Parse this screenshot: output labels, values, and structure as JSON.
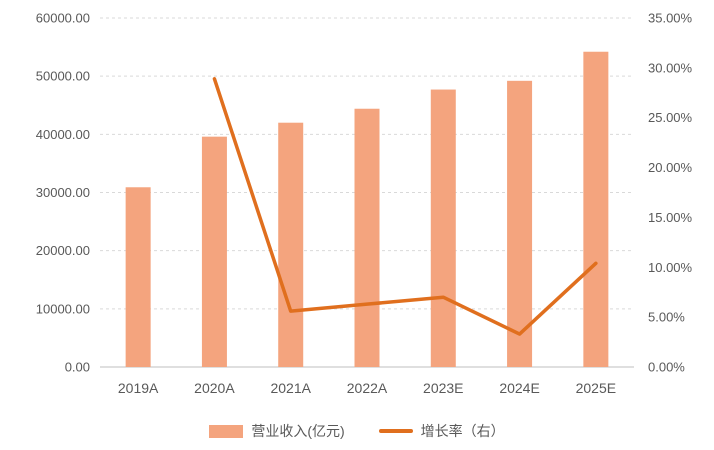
{
  "chart_data": {
    "type": "bar",
    "subtype": "bar-and-line-combo",
    "categories": [
      "2019A",
      "2020A",
      "2021A",
      "2022A",
      "2023E",
      "2024E",
      "2025E"
    ],
    "series": [
      {
        "name": "营业收入(亿元)",
        "type": "bar",
        "axis": "left",
        "values": [
          30900,
          39600,
          42000,
          44400,
          47700,
          49200,
          54200
        ]
      },
      {
        "name": "增长率（右）",
        "type": "line",
        "axis": "right",
        "values": [
          null,
          28.9,
          5.6,
          6.3,
          7.0,
          3.3,
          10.4
        ]
      }
    ],
    "left_axis": {
      "min": 0,
      "max": 60000,
      "tick_labels": [
        "0.00",
        "10000.00",
        "20000.00",
        "30000.00",
        "40000.00",
        "50000.00",
        "60000.00"
      ]
    },
    "right_axis": {
      "min": 0,
      "max": 35,
      "tick_labels": [
        "0.00%",
        "5.00%",
        "10.00%",
        "15.00%",
        "20.00%",
        "25.00%",
        "30.00%",
        "35.00%"
      ],
      "unit": "%"
    },
    "title": "",
    "xlabel": "",
    "ylabel": "",
    "grid": "horizontal-dashed",
    "legend_position": "bottom"
  },
  "legend": {
    "bar_label": "营业收入(亿元)",
    "line_label": "增长率（右）"
  },
  "colors": {
    "bar": "#f4a47e",
    "line": "#e06f1e",
    "grid": "#d9d9d9",
    "baseline": "#bfbfbf",
    "axis_text": "#595959"
  }
}
